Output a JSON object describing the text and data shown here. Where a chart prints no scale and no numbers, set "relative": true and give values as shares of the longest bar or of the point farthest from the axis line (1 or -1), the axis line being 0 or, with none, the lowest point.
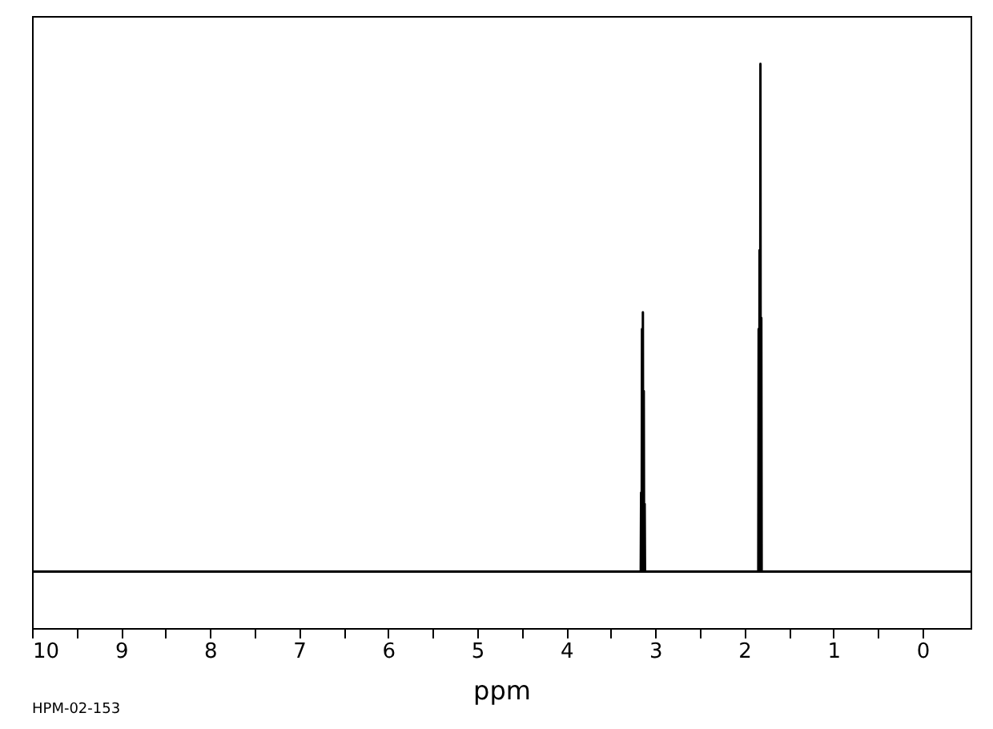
{
  "chart_data": {
    "type": "line",
    "relative": true,
    "xlabel": "ppm",
    "annotations": [
      "HPM-02-153"
    ],
    "xlim": [
      10,
      -0.54
    ],
    "xticks": [
      10,
      {
        "value": 9.5,
        "label": null
      },
      9,
      {
        "value": 8.5,
        "label": null
      },
      8,
      {
        "value": 7.5,
        "label": null
      },
      7,
      {
        "value": 6.5,
        "label": null
      },
      6,
      {
        "value": 5.5,
        "label": null
      },
      5,
      {
        "value": 4.5,
        "label": null
      },
      4,
      {
        "value": 3.5,
        "label": null
      },
      3,
      {
        "value": 2.5,
        "label": null
      },
      2,
      {
        "value": 1.5,
        "label": null
      },
      1,
      {
        "value": 0.5,
        "label": null
      },
      0
    ],
    "tick_labels": "x",
    "grid": false,
    "marker": "none",
    "line_style": "solid",
    "series": [
      {
        "color": "#000000",
        "x": [
          10,
          3.164,
          3.16,
          3.156,
          3.154,
          3.15,
          3.146,
          3.144,
          3.14,
          3.136,
          3.134,
          3.13,
          3.126,
          3.124,
          3.12,
          3.116,
          1.844,
          1.84,
          1.836,
          1.834,
          1.83,
          1.826,
          1.824,
          1.82,
          1.816,
          1.814,
          1.81,
          1.806,
          -0.54
        ],
        "values": [
          0.1,
          0.1,
          0.24,
          0.1,
          0.1,
          0.53,
          0.1,
          0.1,
          0.56,
          0.1,
          0.1,
          0.42,
          0.1,
          0.1,
          0.22,
          0.1,
          0.1,
          0.53,
          0.1,
          0.1,
          0.67,
          0.1,
          0.1,
          1.0,
          0.1,
          0.1,
          0.55,
          0.1,
          0.1
        ]
      }
    ]
  }
}
